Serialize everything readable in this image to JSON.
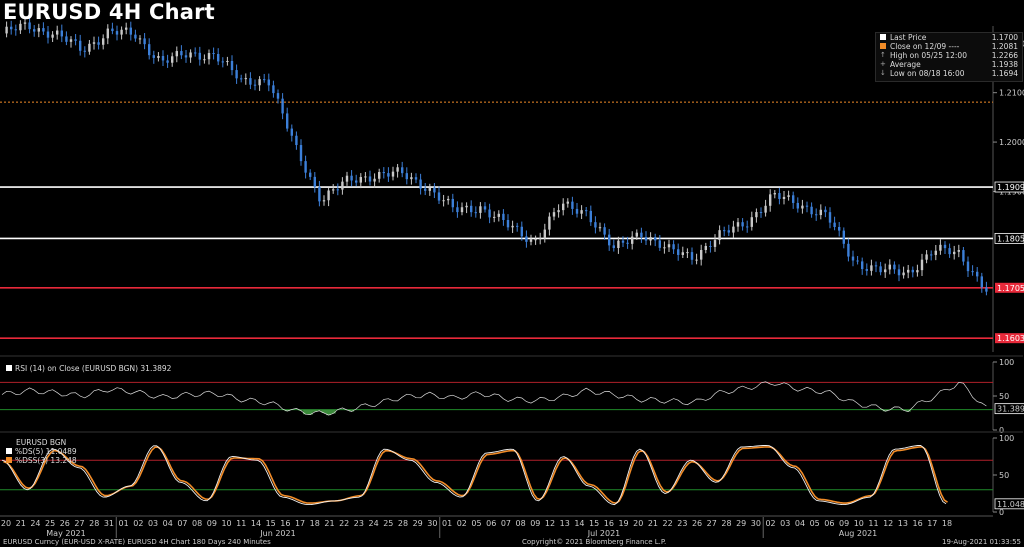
{
  "title": "EURUSD 4H Chart",
  "legend": {
    "rows": [
      {
        "label": "Last Price",
        "value": "1.1700",
        "marker": "white-square"
      },
      {
        "label": "Close on 12/09 ---- ",
        "value": "1.2081",
        "marker": "orange-square"
      },
      {
        "label": "High on 05/25 12:00",
        "value": "1.2266",
        "marker": "high-glyph"
      },
      {
        "label": "Average",
        "value": "1.1938",
        "marker": "avg-glyph"
      },
      {
        "label": "Low on 08/18 16:00",
        "value": "1.1694",
        "marker": "low-glyph"
      }
    ]
  },
  "price_labels": [
    "1.1909",
    "1.1805",
    "1.1705",
    "1.1603"
  ],
  "rsi_label": "RSI (14)  on Close (EURUSD BGN) 31.3892",
  "rsi_value_label": "31.3892",
  "stoch_labels": {
    "name": "EURUSD BGN",
    "ds": "%DS(5)   11.0489",
    "dss": "%DSS(3) 13.248"
  },
  "stoch_value_label": "11.0489",
  "footer": {
    "left": "EURUSD Curncy (EUR-USD X-RATE) EURUSD 4H Chart 180 Days 240 Minutes",
    "center": "Copyright© 2021 Bloomberg Finance L.P.",
    "right": "19-Aug-2021 01:33:55"
  },
  "colors": {
    "up": "#c8c8c8",
    "down": "#3c7fd8",
    "support": "#e8293a",
    "resistance": "#ffffff",
    "close_line": "#f28c28",
    "rsi": "#dddddd",
    "ds": "#f0f0f0",
    "dss": "#f28c28"
  },
  "chart_data": [
    {
      "type": "line",
      "title": "EURUSD 4H Chart",
      "series": [
        {
          "name": "Last Price",
          "x": [
            "2021-05-20",
            "2021-05-24",
            "2021-05-26",
            "2021-05-28",
            "2021-05-31",
            "2021-06-02",
            "2021-06-04",
            "2021-06-08",
            "2021-06-10",
            "2021-06-14",
            "2021-06-16",
            "2021-06-17",
            "2021-06-18",
            "2021-06-21",
            "2021-06-23",
            "2021-06-25",
            "2021-06-28",
            "2021-06-30",
            "2021-07-02",
            "2021-07-06",
            "2021-07-08",
            "2021-07-09",
            "2021-07-12",
            "2021-07-14",
            "2021-07-16",
            "2021-07-20",
            "2021-07-22",
            "2021-07-26",
            "2021-07-28",
            "2021-07-30",
            "2021-08-02",
            "2021-08-04",
            "2021-08-06",
            "2021-08-09",
            "2021-08-11",
            "2021-08-13",
            "2021-08-16",
            "2021-08-18"
          ],
          "values": [
            1.222,
            1.2235,
            1.222,
            1.2185,
            1.2225,
            1.2215,
            1.2165,
            1.2175,
            1.218,
            1.212,
            1.213,
            1.199,
            1.1885,
            1.192,
            1.1935,
            1.1935,
            1.191,
            1.186,
            1.187,
            1.183,
            1.18,
            1.187,
            1.186,
            1.178,
            1.182,
            1.178,
            1.177,
            1.181,
            1.184,
            1.189,
            1.1875,
            1.185,
            1.176,
            1.174,
            1.1735,
            1.178,
            1.1775,
            1.17
          ]
        }
      ],
      "price_levels": [
        1.1909,
        1.1805,
        1.1705,
        1.1603
      ],
      "close_12_09": 1.2081,
      "ylim": [
        1.1575,
        1.2235
      ],
      "yticks": [
        1.22,
        1.21,
        1.2,
        1.19
      ],
      "x_tick_labels": [
        "20",
        "21",
        "24",
        "25",
        "26",
        "27",
        "28",
        "31",
        "01",
        "02",
        "03",
        "04",
        "07",
        "08",
        "09",
        "10",
        "11",
        "14",
        "15",
        "16",
        "17",
        "18",
        "21",
        "22",
        "23",
        "24",
        "25",
        "28",
        "29",
        "30",
        "01",
        "02",
        "05",
        "06",
        "07",
        "08",
        "09",
        "12",
        "13",
        "14",
        "15",
        "16",
        "19",
        "20",
        "21",
        "22",
        "23",
        "26",
        "27",
        "28",
        "29",
        "30",
        "02",
        "03",
        "04",
        "05",
        "06",
        "09",
        "10",
        "11",
        "12",
        "13",
        "16",
        "17",
        "18"
      ],
      "month_labels": [
        "May 2021",
        "Jun 2021",
        "Jul 2021",
        "Aug 2021"
      ],
      "grid": false,
      "legend": "top-right"
    },
    {
      "type": "line",
      "title": "RSI (14) on Close (EURUSD BGN)",
      "series": [
        {
          "name": "RSI (14)",
          "values": [
            52,
            58,
            55,
            50,
            60,
            56,
            48,
            52,
            54,
            45,
            40,
            28,
            24,
            30,
            38,
            48,
            52,
            47,
            54,
            46,
            43,
            48,
            58,
            52,
            45,
            43,
            40,
            55,
            62,
            70,
            60,
            56,
            40,
            32,
            30,
            48,
            70,
            31.3892
          ]
        }
      ],
      "ylim": [
        0,
        100
      ],
      "yticks": [
        0,
        50,
        100
      ],
      "levels": [
        70,
        30
      ],
      "last": 31.3892
    },
    {
      "type": "line",
      "title": "EURUSD BGN",
      "series": [
        {
          "name": "%DS(5)",
          "values": [
            70,
            30,
            85,
            60,
            20,
            35,
            90,
            40,
            15,
            75,
            70,
            20,
            10,
            15,
            20,
            85,
            70,
            40,
            20,
            80,
            85,
            15,
            75,
            35,
            10,
            85,
            25,
            70,
            40,
            88,
            90,
            60,
            15,
            10,
            20,
            85,
            90,
            11.0489
          ]
        },
        {
          "name": "%DSS(3)",
          "values": [
            68,
            32,
            83,
            62,
            22,
            35,
            88,
            42,
            17,
            73,
            72,
            22,
            12,
            15,
            22,
            83,
            72,
            42,
            22,
            78,
            83,
            17,
            73,
            37,
            12,
            83,
            27,
            68,
            42,
            86,
            88,
            62,
            17,
            12,
            22,
            83,
            88,
            13.248
          ]
        }
      ],
      "ylim": [
        0,
        100
      ],
      "yticks": [
        0,
        50,
        100
      ],
      "levels": [
        70,
        30
      ],
      "last": [
        11.0489,
        13.248
      ]
    }
  ]
}
